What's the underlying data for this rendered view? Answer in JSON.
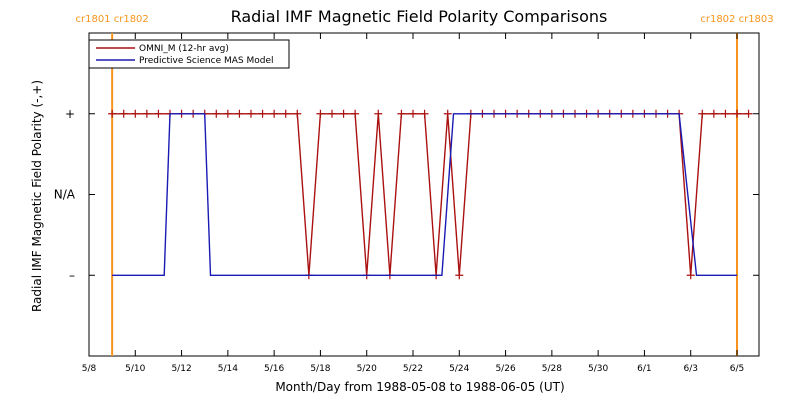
{
  "chart_data": {
    "type": "line",
    "title": "Radial IMF Magnetic Field Polarity Comparisons",
    "xlabel": "Month/Day from 1988-05-08 to 1988-06-05 (UT)",
    "ylabel": "Radial IMF Magnetic Field Polarity (-,+)",
    "x_start": "1988-05-08",
    "x_end": "1988-06-05",
    "xlim": [
      "1988-05-08",
      "1988-06-05"
    ],
    "x_ticks": [
      {
        "date": "1988-05-08",
        "label": "5/8"
      },
      {
        "date": "1988-05-10",
        "label": "5/10"
      },
      {
        "date": "1988-05-12",
        "label": "5/12"
      },
      {
        "date": "1988-05-14",
        "label": "5/14"
      },
      {
        "date": "1988-05-16",
        "label": "5/16"
      },
      {
        "date": "1988-05-18",
        "label": "5/18"
      },
      {
        "date": "1988-05-20",
        "label": "5/20"
      },
      {
        "date": "1988-05-22",
        "label": "5/22"
      },
      {
        "date": "1988-05-24",
        "label": "5/24"
      },
      {
        "date": "1988-05-26",
        "label": "5/26"
      },
      {
        "date": "1988-05-28",
        "label": "5/28"
      },
      {
        "date": "1988-05-30",
        "label": "5/30"
      },
      {
        "date": "1988-06-01",
        "label": "6/1"
      },
      {
        "date": "1988-06-03",
        "label": "6/3"
      },
      {
        "date": "1988-06-05",
        "label": "6/5"
      }
    ],
    "y_ticks": [
      {
        "value": 1,
        "label": "+"
      },
      {
        "value": 0,
        "label": "N/A"
      },
      {
        "value": -1,
        "label": "–"
      }
    ],
    "ylim": [
      -2,
      2
    ],
    "grid": false,
    "legend_position": "top-left",
    "carrington_markers": [
      {
        "date": "1988-05-09 00:00",
        "label": "cr1801 cr1802",
        "color": "#f7941d"
      },
      {
        "date": "1988-06-05 00:00",
        "label": "cr1802 cr1803",
        "color": "#f7941d"
      }
    ],
    "series": [
      {
        "name": "OMNI_M (12-hr avg)",
        "color": "#aa1111",
        "marker": "plus",
        "points": [
          {
            "x": "1988-05-09 00:00",
            "y": 1
          },
          {
            "x": "1988-05-09 12:00",
            "y": 1
          },
          {
            "x": "1988-05-10 00:00",
            "y": 1
          },
          {
            "x": "1988-05-10 12:00",
            "y": 1
          },
          {
            "x": "1988-05-11 00:00",
            "y": 1
          },
          {
            "x": "1988-05-11 12:00",
            "y": 1
          },
          {
            "x": "1988-05-12 00:00",
            "y": 1
          },
          {
            "x": "1988-05-12 12:00",
            "y": 1
          },
          {
            "x": "1988-05-13 00:00",
            "y": 1
          },
          {
            "x": "1988-05-13 12:00",
            "y": 1
          },
          {
            "x": "1988-05-14 00:00",
            "y": 1
          },
          {
            "x": "1988-05-14 12:00",
            "y": 1
          },
          {
            "x": "1988-05-15 00:00",
            "y": 1
          },
          {
            "x": "1988-05-15 12:00",
            "y": 1
          },
          {
            "x": "1988-05-16 00:00",
            "y": 1
          },
          {
            "x": "1988-05-16 12:00",
            "y": 1
          },
          {
            "x": "1988-05-17 00:00",
            "y": 1
          },
          {
            "x": "1988-05-17 12:00",
            "y": -1
          },
          {
            "x": "1988-05-18 00:00",
            "y": 1
          },
          {
            "x": "1988-05-18 12:00",
            "y": 1
          },
          {
            "x": "1988-05-19 00:00",
            "y": 1
          },
          {
            "x": "1988-05-19 12:00",
            "y": 1
          },
          {
            "x": "1988-05-20 00:00",
            "y": -1
          },
          {
            "x": "1988-05-20 12:00",
            "y": 1
          },
          {
            "x": "1988-05-21 00:00",
            "y": -1
          },
          {
            "x": "1988-05-21 12:00",
            "y": 1
          },
          {
            "x": "1988-05-22 00:00",
            "y": 1
          },
          {
            "x": "1988-05-22 12:00",
            "y": 1
          },
          {
            "x": "1988-05-23 00:00",
            "y": -1
          },
          {
            "x": "1988-05-23 12:00",
            "y": 1
          },
          {
            "x": "1988-05-24 00:00",
            "y": -1
          },
          {
            "x": "1988-05-24 12:00",
            "y": 1
          },
          {
            "x": "1988-05-25 00:00",
            "y": 1
          },
          {
            "x": "1988-05-25 12:00",
            "y": 1
          },
          {
            "x": "1988-05-26 00:00",
            "y": 1
          },
          {
            "x": "1988-05-26 12:00",
            "y": 1
          },
          {
            "x": "1988-05-27 00:00",
            "y": 1
          },
          {
            "x": "1988-05-27 12:00",
            "y": 1
          },
          {
            "x": "1988-05-28 00:00",
            "y": 1
          },
          {
            "x": "1988-05-28 12:00",
            "y": 1
          },
          {
            "x": "1988-05-29 00:00",
            "y": 1
          },
          {
            "x": "1988-05-29 12:00",
            "y": 1
          },
          {
            "x": "1988-05-30 00:00",
            "y": 1
          },
          {
            "x": "1988-05-30 12:00",
            "y": 1
          },
          {
            "x": "1988-05-31 00:00",
            "y": 1
          },
          {
            "x": "1988-05-31 12:00",
            "y": 1
          },
          {
            "x": "1988-06-01 00:00",
            "y": 1
          },
          {
            "x": "1988-06-01 12:00",
            "y": 1
          },
          {
            "x": "1988-06-02 00:00",
            "y": 1
          },
          {
            "x": "1988-06-02 12:00",
            "y": 1
          },
          {
            "x": "1988-06-03 00:00",
            "y": -1
          },
          {
            "x": "1988-06-03 12:00",
            "y": 1
          },
          {
            "x": "1988-06-04 00:00",
            "y": 1
          },
          {
            "x": "1988-06-04 12:00",
            "y": 1
          },
          {
            "x": "1988-06-05 00:00",
            "y": 1
          },
          {
            "x": "1988-06-05 12:00",
            "y": 1
          }
        ]
      },
      {
        "name": "Predictive Science MAS Model",
        "color": "#1a1ab4",
        "marker": "none",
        "points": [
          {
            "x": "1988-05-09 00:00",
            "y": -1
          },
          {
            "x": "1988-05-11 06:00",
            "y": -1
          },
          {
            "x": "1988-05-11 12:00",
            "y": 1
          },
          {
            "x": "1988-05-13 00:00",
            "y": 1
          },
          {
            "x": "1988-05-13 06:00",
            "y": -1
          },
          {
            "x": "1988-05-23 06:00",
            "y": -1
          },
          {
            "x": "1988-05-23 18:00",
            "y": 1
          },
          {
            "x": "1988-06-02 12:00",
            "y": 1
          },
          {
            "x": "1988-06-03 06:00",
            "y": -1
          },
          {
            "x": "1988-06-05 00:00",
            "y": -1
          }
        ]
      }
    ]
  }
}
